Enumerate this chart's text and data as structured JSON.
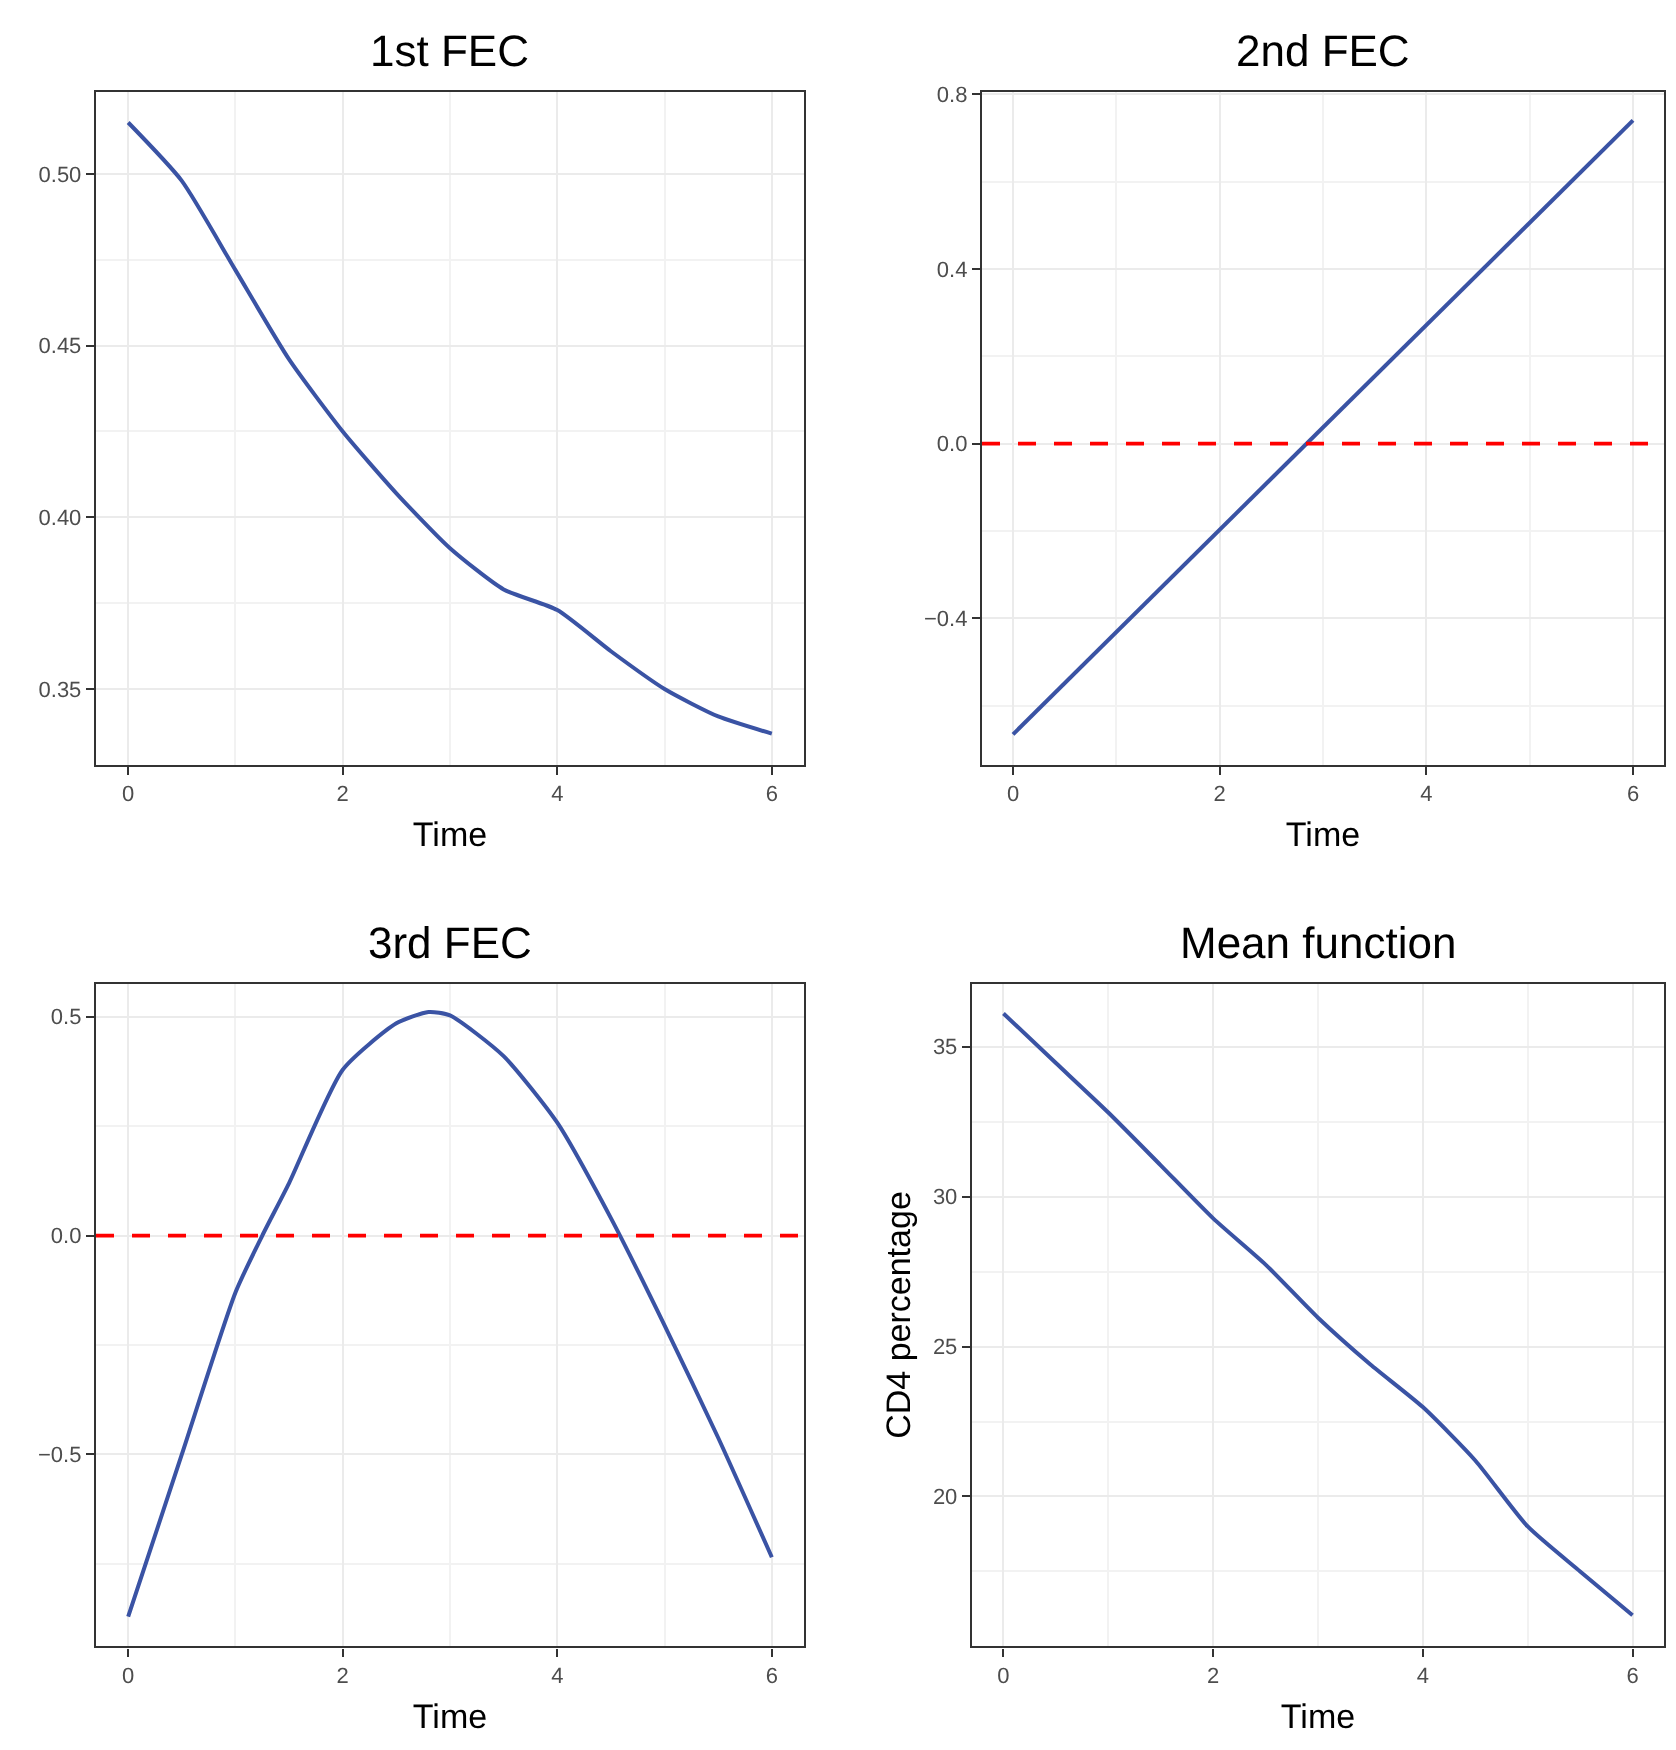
{
  "chart_data": [
    {
      "type": "line",
      "title": "1st FEC",
      "xlabel": "Time",
      "x": [
        0,
        0.5,
        1,
        1.5,
        2,
        2.5,
        3,
        3.5,
        4,
        4.5,
        5,
        5.5,
        6
      ],
      "series": [
        {
          "color": "#3a53a4",
          "values": [
            0.515,
            0.498,
            0.472,
            0.446,
            0.425,
            0.407,
            0.391,
            0.379,
            0.373,
            0.361,
            0.35,
            0.342,
            0.337
          ]
        }
      ],
      "xlim": [
        -0.3,
        6.3
      ],
      "ylim": [
        0.328,
        0.524
      ],
      "xticks": [
        0,
        2,
        4,
        6
      ],
      "yticks": [
        {
          "value": 0.35,
          "label": "0.35"
        },
        {
          "value": 0.4,
          "label": "0.40"
        },
        {
          "value": 0.45,
          "label": "0.45"
        },
        {
          "value": 0.5,
          "label": "0.50"
        }
      ],
      "grid": true
    },
    {
      "type": "line",
      "title": "2nd FEC",
      "xlabel": "Time",
      "x": [
        0,
        6
      ],
      "series": [
        {
          "color": "#3a53a4",
          "values": [
            -0.666,
            0.74
          ]
        }
      ],
      "xlim": [
        -0.3,
        6.3
      ],
      "ylim": [
        -0.735,
        0.806
      ],
      "xticks": [
        0,
        2,
        4,
        6
      ],
      "yticks": [
        {
          "value": -0.4,
          "label": "−0.4"
        },
        {
          "value": 0,
          "label": "0.0"
        },
        0.4,
        0.8
      ],
      "grid": true,
      "ref_lines": [
        {
          "axis": "y",
          "value": 0,
          "color": "#ff0000",
          "line_style": "dashed"
        }
      ]
    },
    {
      "type": "line",
      "title": "3rd FEC",
      "xlabel": "Time",
      "x": [
        0,
        0.5,
        1,
        1.25,
        1.5,
        2,
        2.5,
        2.8,
        3,
        3.5,
        4,
        4.5,
        5,
        5.5,
        6
      ],
      "series": [
        {
          "color": "#3a53a4",
          "values": [
            -0.871,
            -0.5,
            -0.13,
            0,
            0.12,
            0.379,
            0.485,
            0.511,
            0.503,
            0.41,
            0.258,
            0.04,
            -0.205,
            -0.462,
            -0.735
          ]
        }
      ],
      "xlim": [
        -0.3,
        6.3
      ],
      "ylim": [
        -0.939,
        0.576
      ],
      "xticks": [
        0,
        2,
        4,
        6
      ],
      "yticks": [
        {
          "value": -0.5,
          "label": "−0.5"
        },
        {
          "value": 0,
          "label": "0.0"
        },
        0.5
      ],
      "grid": true,
      "ref_lines": [
        {
          "axis": "y",
          "value": 0,
          "color": "#ff0000",
          "line_style": "dashed"
        }
      ]
    },
    {
      "type": "line",
      "title": "Mean function",
      "xlabel": "Time",
      "ylabel": "CD4 percentage",
      "x": [
        0,
        0.5,
        1,
        1.5,
        2,
        2.5,
        3,
        3.5,
        4,
        4.5,
        5,
        5.5,
        6
      ],
      "series": [
        {
          "color": "#3a53a4",
          "values": [
            36.1,
            34.45,
            32.8,
            31.04,
            29.27,
            27.73,
            25.96,
            24.4,
            22.98,
            21.2,
            19.0,
            17.5,
            16.04
          ]
        }
      ],
      "xlim": [
        -0.3,
        6.3
      ],
      "ylim": [
        15.0,
        37.1
      ],
      "xticks": [
        0,
        2,
        4,
        6
      ],
      "yticks": [
        20,
        25,
        30,
        35
      ],
      "grid": true
    }
  ]
}
